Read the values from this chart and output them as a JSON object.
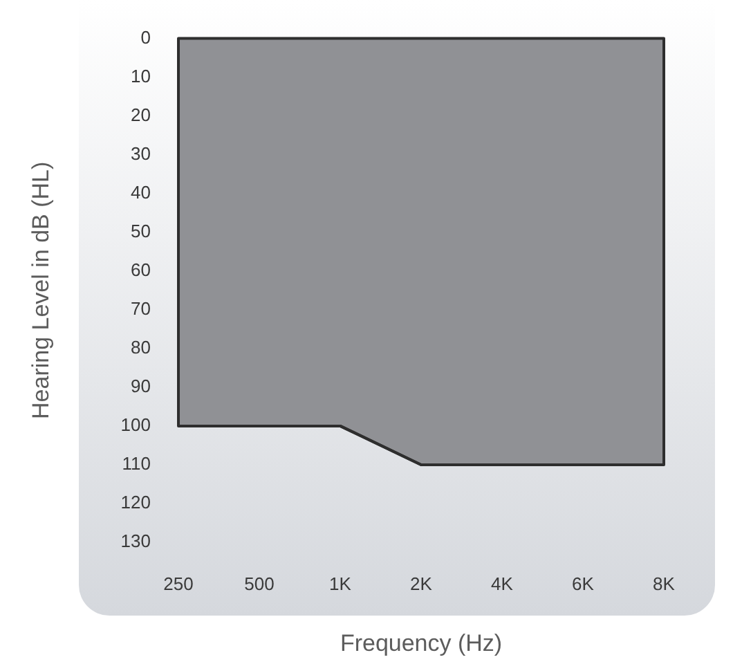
{
  "chart_data": {
    "type": "area",
    "xlabel": "Frequency (Hz)",
    "ylabel": "Hearing Level in dB (HL)",
    "categories": [
      "250",
      "500",
      "1K",
      "2K",
      "4K",
      "6K",
      "8K"
    ],
    "values": [
      100,
      100,
      100,
      110,
      110,
      110,
      110
    ],
    "color": "#909195",
    "ylim": [
      130,
      0
    ],
    "yticks": [
      0,
      10,
      20,
      30,
      40,
      50,
      60,
      70,
      80,
      90,
      100,
      110,
      120,
      130
    ],
    "grid": false,
    "legend": false
  }
}
